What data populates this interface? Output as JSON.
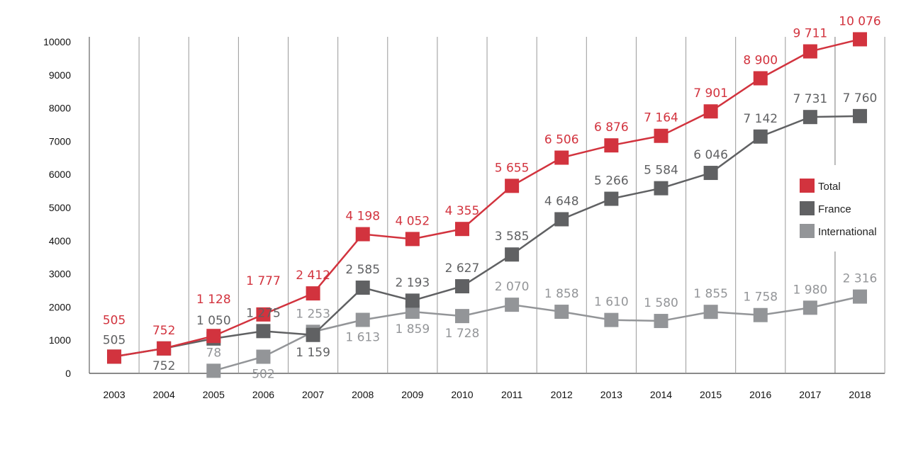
{
  "chart_data": {
    "type": "line",
    "title": "",
    "xlabel": "",
    "ylabel": "",
    "ylim": [
      0,
      10000
    ],
    "yticks": [
      "0",
      "1000",
      "2000",
      "3000",
      "4000",
      "5000",
      "6000",
      "7000",
      "8000",
      "9000",
      "10000"
    ],
    "categories": [
      "2003",
      "2004",
      "2005",
      "2006",
      "2007",
      "2008",
      "2009",
      "2010",
      "2011",
      "2012",
      "2013",
      "2014",
      "2015",
      "2016",
      "2017",
      "2018"
    ],
    "grid": "vertical",
    "legend": "right",
    "series": [
      {
        "name": "Total",
        "color": "#d2333e",
        "values": [
          505,
          752,
          1128,
          1777,
          2412,
          4198,
          4052,
          4355,
          5655,
          6506,
          6876,
          7164,
          7901,
          8900,
          9711,
          10076
        ],
        "labels": [
          "505",
          "752",
          "1 128",
          "1 777",
          "2 412",
          "4 198",
          "4 052",
          "4 355",
          "5 655",
          "6 506",
          "6 876",
          "7 164",
          "7 901",
          "8 900",
          "9 711",
          "10 076"
        ]
      },
      {
        "name": "France",
        "color": "#606163",
        "values": [
          505,
          752,
          1050,
          1275,
          1159,
          2585,
          2193,
          2627,
          3585,
          4648,
          5266,
          5584,
          6046,
          7142,
          7731,
          7760
        ],
        "labels": [
          "505",
          "752",
          "1 050",
          "1 275",
          "1 159",
          "2 585",
          "2 193",
          "2 627",
          "3 585",
          "4 648",
          "5 266",
          "5 584",
          "6 046",
          "7 142",
          "7 731",
          "7 760"
        ]
      },
      {
        "name": "International",
        "color": "#939598",
        "values": [
          null,
          null,
          78,
          502,
          1253,
          1613,
          1859,
          1728,
          2070,
          1858,
          1610,
          1580,
          1855,
          1758,
          1980,
          2316
        ],
        "labels": [
          null,
          null,
          "78",
          "502",
          "1 253",
          "1 613",
          "1 859",
          "1 728",
          "2 070",
          "1 858",
          "1 610",
          "1 580",
          "1 855",
          "1 758",
          "1 980",
          "2 316"
        ]
      }
    ]
  }
}
